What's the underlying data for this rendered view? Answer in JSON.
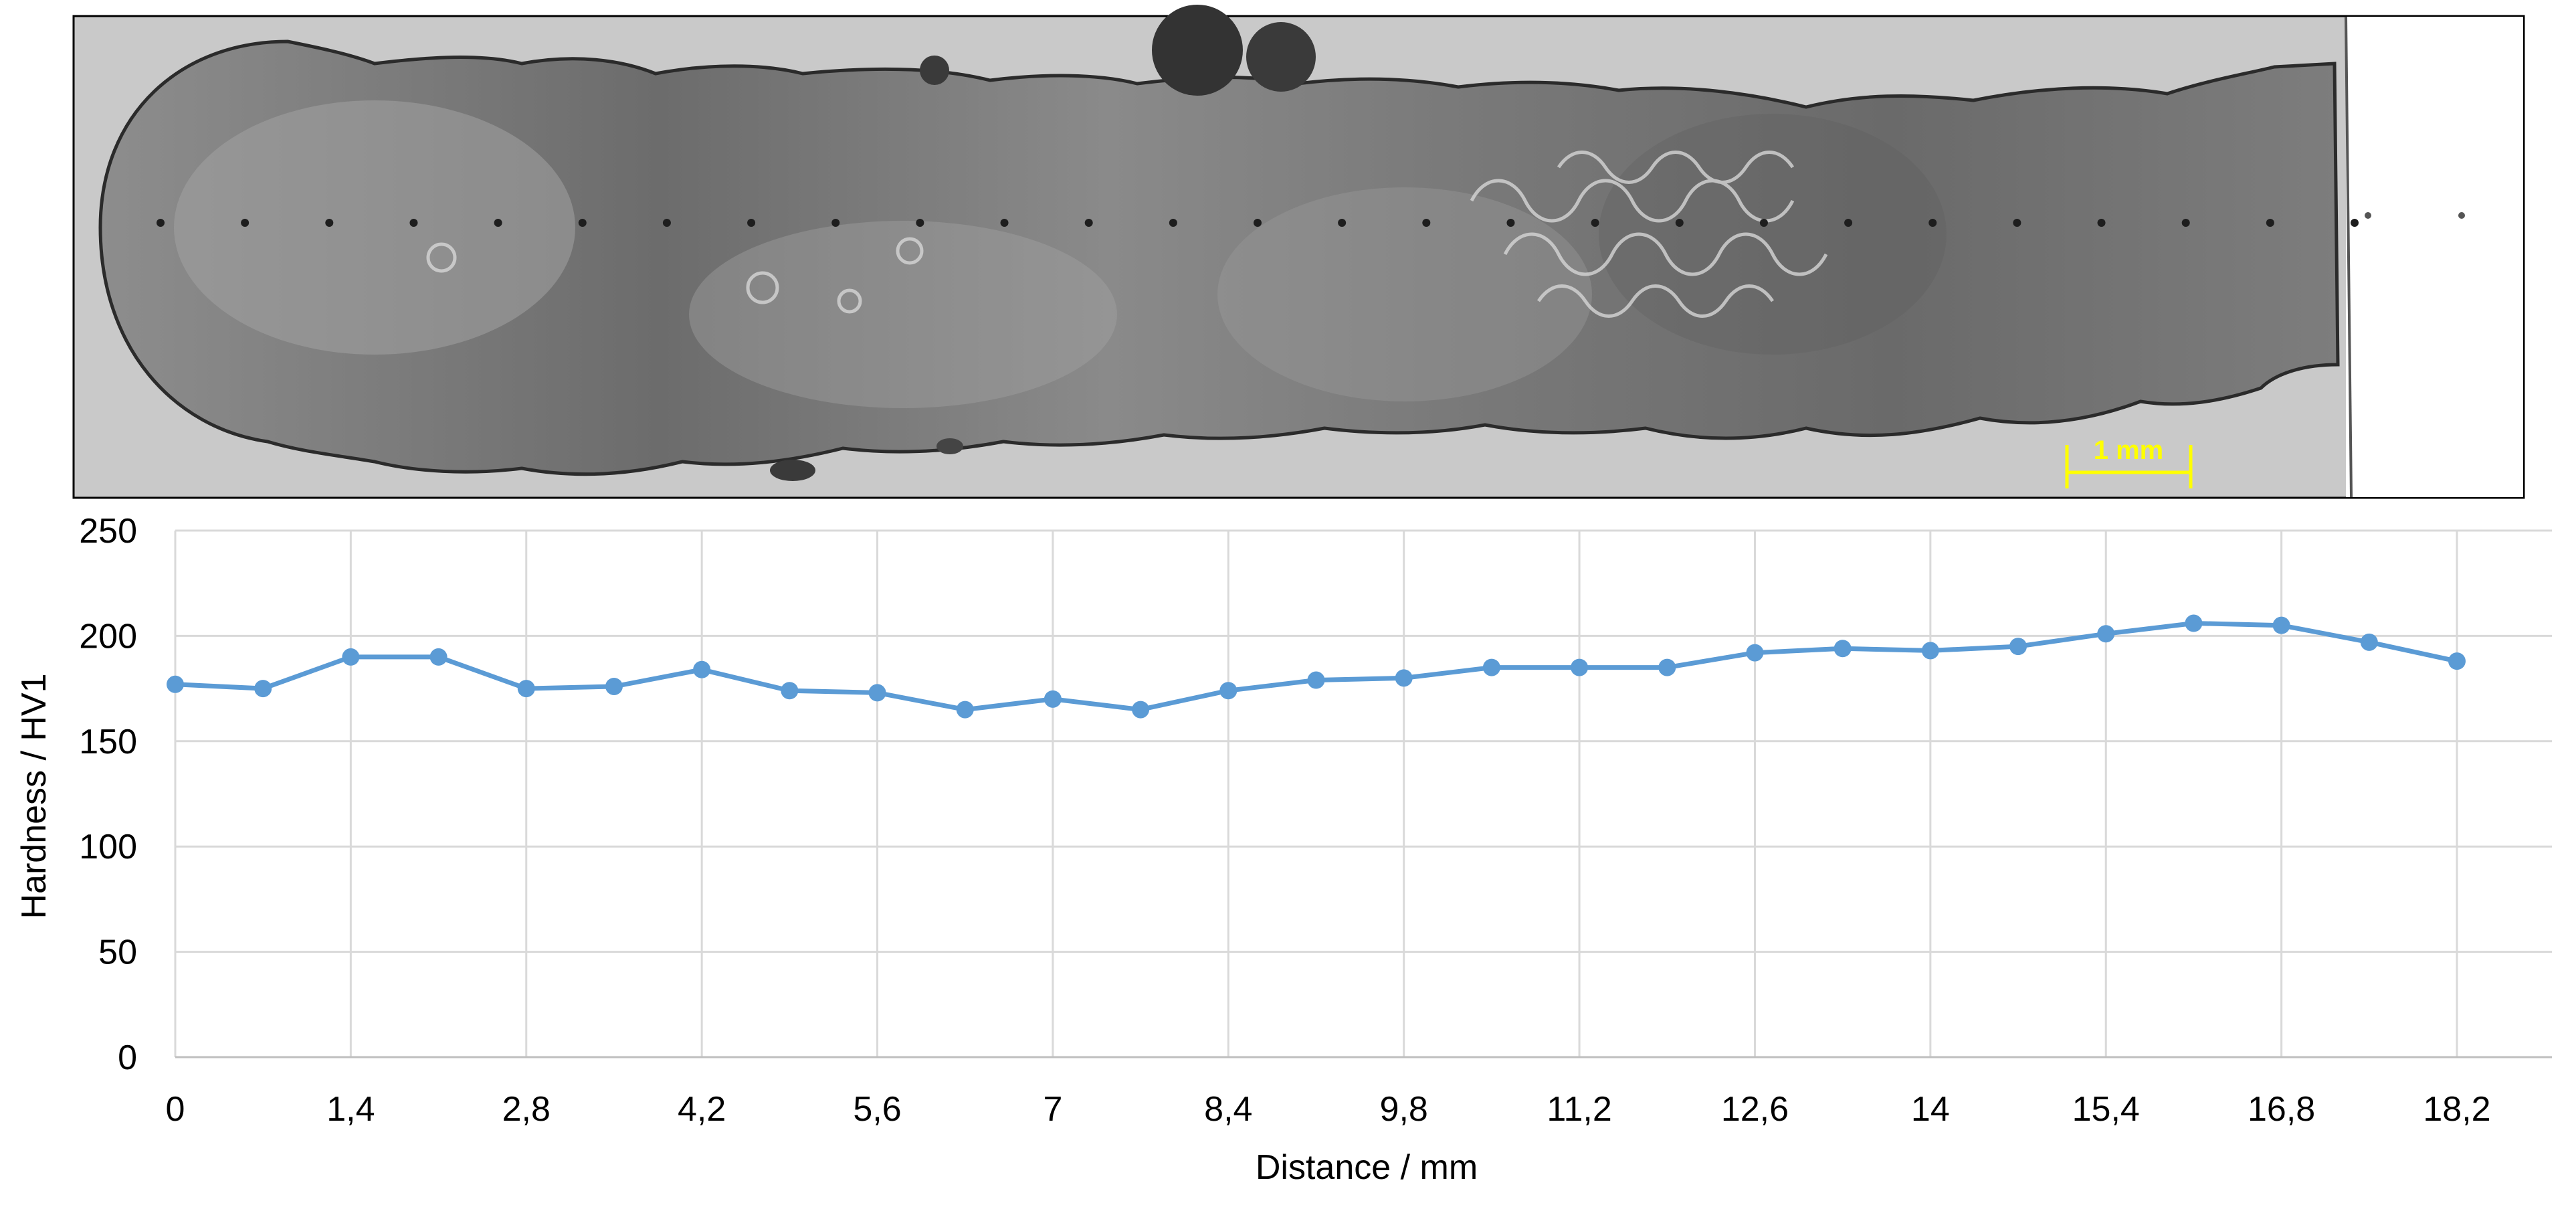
{
  "micrograph": {
    "scale_bar_label": "1 mm",
    "scale_bar_color": "#FFFF00"
  },
  "chart_data": {
    "type": "line",
    "xlabel": "Distance / mm",
    "ylabel": "Hardness / HV1",
    "xlim": [
      0,
      18.2
    ],
    "ylim": [
      0,
      250
    ],
    "x_ticks": [
      0,
      1.4,
      2.8,
      4.2,
      5.6,
      7,
      8.4,
      9.8,
      11.2,
      12.6,
      14,
      15.4,
      16.8,
      18.2
    ],
    "x_tick_labels": [
      "0",
      "1,4",
      "2,8",
      "4,2",
      "5,6",
      "7",
      "8,4",
      "9,8",
      "11,2",
      "12,6",
      "14",
      "15,4",
      "16,8",
      "18,2"
    ],
    "y_ticks": [
      0,
      50,
      100,
      150,
      200,
      250
    ],
    "y_tick_labels": [
      "0",
      "50",
      "100",
      "150",
      "200",
      "250"
    ],
    "grid": true,
    "legend": "none",
    "series": [
      {
        "color": "#5B9BD5",
        "x": [
          0,
          0.7,
          1.4,
          2.1,
          2.8,
          3.5,
          4.2,
          4.9,
          5.6,
          6.3,
          7,
          7.7,
          8.4,
          9.1,
          9.8,
          10.5,
          11.2,
          11.9,
          12.6,
          13.3,
          14,
          14.7,
          15.4,
          16.1,
          16.8,
          17.5,
          18.2
        ],
        "y": [
          177,
          175,
          190,
          190,
          175,
          176,
          184,
          174,
          173,
          165,
          170,
          165,
          174,
          179,
          180,
          185,
          185,
          185,
          192,
          194,
          193,
          195,
          201,
          206,
          205,
          197,
          188
        ]
      }
    ]
  }
}
